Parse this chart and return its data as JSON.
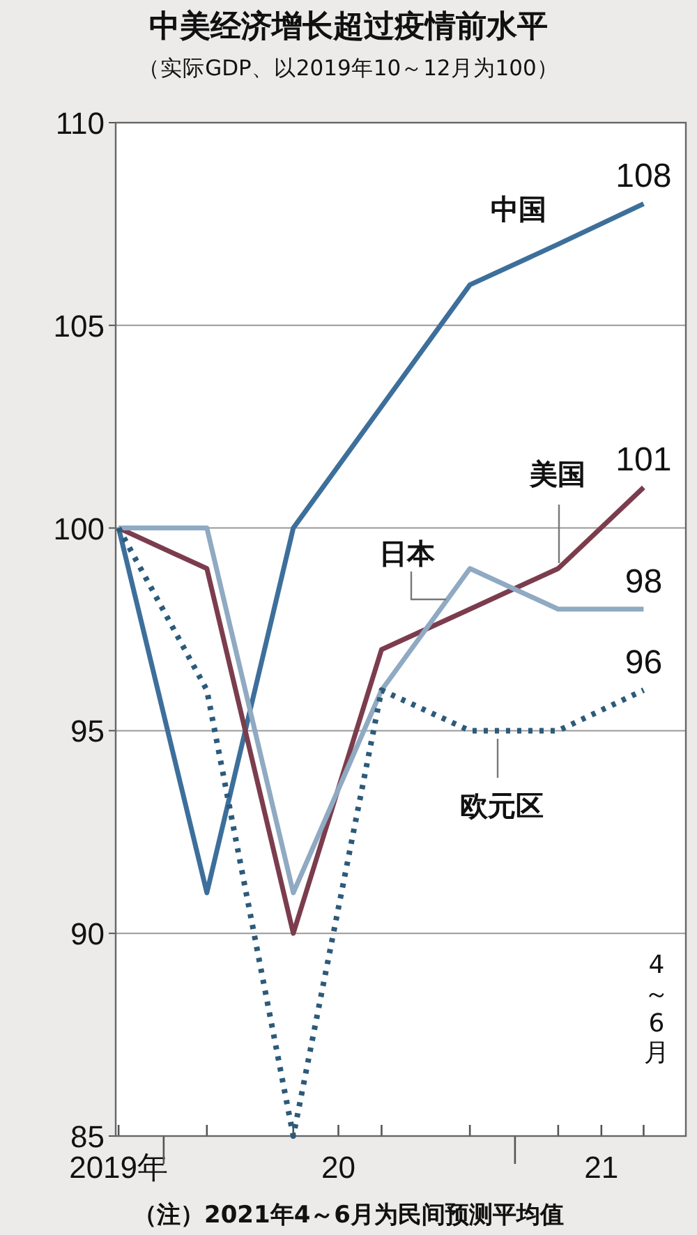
{
  "chart_data": {
    "type": "line",
    "title": "中美经济增长超过疫情前水平",
    "subtitle": "（实际GDP、以2019年10～12月为100）",
    "x": [
      "2019-11-15",
      "2020-02-15",
      "2020-05-15",
      "2020-08-15",
      "2020-11-15",
      "2021-02-15",
      "2021-05-15"
    ],
    "xlim": [
      "2019-11-12",
      "2021-06-28"
    ],
    "xticks": [
      {
        "value": "2019-11-15",
        "label": "2019年"
      },
      {
        "value": "2020-02-15",
        "label": null
      },
      {
        "value": "2020-05-15",
        "label": null
      },
      {
        "value": "2020-07-01",
        "label": "20"
      },
      {
        "value": "2020-08-15",
        "label": null
      },
      {
        "value": "2020-11-15",
        "label": null
      },
      {
        "value": "2021-02-15",
        "label": null
      },
      {
        "value": "2021-04-01",
        "label": "21"
      },
      {
        "value": "2021-05-15",
        "label": null
      }
    ],
    "ylim": [
      85,
      110
    ],
    "yticks": [
      85,
      90,
      95,
      100,
      105,
      110
    ],
    "grid": "y",
    "legend": false,
    "series": [
      {
        "name": "中国",
        "color": "#3d6f9b",
        "values": [
          100,
          91,
          100,
          103,
          106,
          107,
          108
        ],
        "value_labels": [
          null,
          null,
          null,
          null,
          null,
          null,
          "108"
        ]
      },
      {
        "name": "美国",
        "color": "#7b3d4d",
        "values": [
          100,
          99,
          90,
          97,
          98,
          99,
          101
        ],
        "value_labels": [
          null,
          null,
          null,
          null,
          null,
          null,
          "101"
        ]
      },
      {
        "name": "日本",
        "color": "#8faac2",
        "values": [
          100,
          100,
          91,
          96,
          99,
          98,
          98
        ],
        "value_labels": [
          null,
          null,
          null,
          null,
          null,
          null,
          "98"
        ]
      },
      {
        "name": "欧元区",
        "color": "#2c5a7a",
        "line_style": "dotted",
        "values": [
          100,
          96,
          85,
          96,
          95,
          95,
          96
        ],
        "value_labels": [
          null,
          null,
          null,
          null,
          null,
          null,
          "96"
        ]
      }
    ],
    "annotations": [
      "4～6月",
      "（注）2021年4～6月为民间预测平均值"
    ]
  }
}
